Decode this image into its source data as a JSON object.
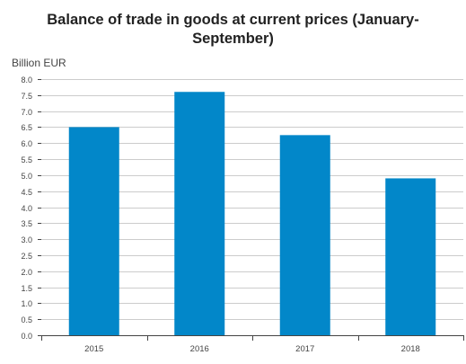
{
  "chart_data": {
    "type": "bar",
    "title_lines": [
      "Balance of trade in goods at current prices (January-",
      "September)"
    ],
    "ylabel": "Billion EUR",
    "categories": [
      "2015",
      "2016",
      "2017",
      "2018"
    ],
    "values": [
      6.5,
      7.6,
      6.25,
      4.9
    ],
    "ylim": [
      0,
      8
    ],
    "yticks": [
      "0.0",
      "0.5",
      "1.0",
      "1.5",
      "2.0",
      "2.5",
      "3.0",
      "3.5",
      "4.0",
      "4.5",
      "5.0",
      "5.5",
      "6.0",
      "6.5",
      "7.0",
      "7.5",
      "8.0"
    ],
    "grid": true,
    "legend": "none",
    "bar_color": "#0287c9",
    "grid_color": "#cccccc",
    "axis_color": "#444444"
  }
}
